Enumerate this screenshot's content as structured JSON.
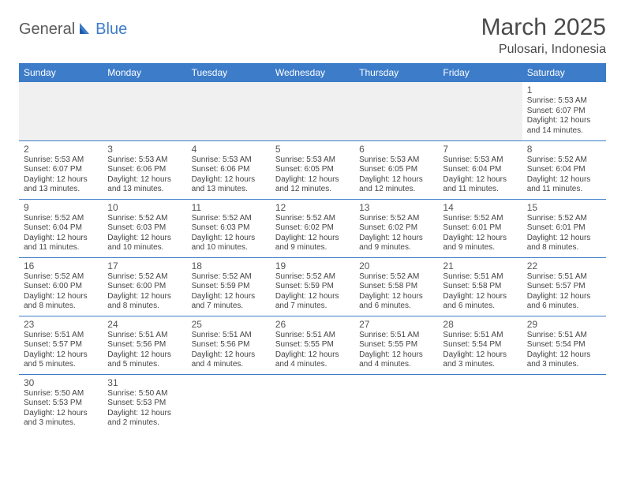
{
  "logo": {
    "general": "General",
    "blue": "Blue"
  },
  "title": "March 2025",
  "location": "Pulosari, Indonesia",
  "header_bg": "#3d7cc9",
  "header_fg": "#ffffff",
  "weekdays": [
    "Sunday",
    "Monday",
    "Tuesday",
    "Wednesday",
    "Thursday",
    "Friday",
    "Saturday"
  ],
  "weeks": [
    [
      null,
      null,
      null,
      null,
      null,
      null,
      {
        "n": "1",
        "sr": "5:53 AM",
        "ss": "6:07 PM",
        "dl": "12 hours and 14 minutes."
      }
    ],
    [
      {
        "n": "2",
        "sr": "5:53 AM",
        "ss": "6:07 PM",
        "dl": "12 hours and 13 minutes."
      },
      {
        "n": "3",
        "sr": "5:53 AM",
        "ss": "6:06 PM",
        "dl": "12 hours and 13 minutes."
      },
      {
        "n": "4",
        "sr": "5:53 AM",
        "ss": "6:06 PM",
        "dl": "12 hours and 13 minutes."
      },
      {
        "n": "5",
        "sr": "5:53 AM",
        "ss": "6:05 PM",
        "dl": "12 hours and 12 minutes."
      },
      {
        "n": "6",
        "sr": "5:53 AM",
        "ss": "6:05 PM",
        "dl": "12 hours and 12 minutes."
      },
      {
        "n": "7",
        "sr": "5:53 AM",
        "ss": "6:04 PM",
        "dl": "12 hours and 11 minutes."
      },
      {
        "n": "8",
        "sr": "5:52 AM",
        "ss": "6:04 PM",
        "dl": "12 hours and 11 minutes."
      }
    ],
    [
      {
        "n": "9",
        "sr": "5:52 AM",
        "ss": "6:04 PM",
        "dl": "12 hours and 11 minutes."
      },
      {
        "n": "10",
        "sr": "5:52 AM",
        "ss": "6:03 PM",
        "dl": "12 hours and 10 minutes."
      },
      {
        "n": "11",
        "sr": "5:52 AM",
        "ss": "6:03 PM",
        "dl": "12 hours and 10 minutes."
      },
      {
        "n": "12",
        "sr": "5:52 AM",
        "ss": "6:02 PM",
        "dl": "12 hours and 9 minutes."
      },
      {
        "n": "13",
        "sr": "5:52 AM",
        "ss": "6:02 PM",
        "dl": "12 hours and 9 minutes."
      },
      {
        "n": "14",
        "sr": "5:52 AM",
        "ss": "6:01 PM",
        "dl": "12 hours and 9 minutes."
      },
      {
        "n": "15",
        "sr": "5:52 AM",
        "ss": "6:01 PM",
        "dl": "12 hours and 8 minutes."
      }
    ],
    [
      {
        "n": "16",
        "sr": "5:52 AM",
        "ss": "6:00 PM",
        "dl": "12 hours and 8 minutes."
      },
      {
        "n": "17",
        "sr": "5:52 AM",
        "ss": "6:00 PM",
        "dl": "12 hours and 8 minutes."
      },
      {
        "n": "18",
        "sr": "5:52 AM",
        "ss": "5:59 PM",
        "dl": "12 hours and 7 minutes."
      },
      {
        "n": "19",
        "sr": "5:52 AM",
        "ss": "5:59 PM",
        "dl": "12 hours and 7 minutes."
      },
      {
        "n": "20",
        "sr": "5:52 AM",
        "ss": "5:58 PM",
        "dl": "12 hours and 6 minutes."
      },
      {
        "n": "21",
        "sr": "5:51 AM",
        "ss": "5:58 PM",
        "dl": "12 hours and 6 minutes."
      },
      {
        "n": "22",
        "sr": "5:51 AM",
        "ss": "5:57 PM",
        "dl": "12 hours and 6 minutes."
      }
    ],
    [
      {
        "n": "23",
        "sr": "5:51 AM",
        "ss": "5:57 PM",
        "dl": "12 hours and 5 minutes."
      },
      {
        "n": "24",
        "sr": "5:51 AM",
        "ss": "5:56 PM",
        "dl": "12 hours and 5 minutes."
      },
      {
        "n": "25",
        "sr": "5:51 AM",
        "ss": "5:56 PM",
        "dl": "12 hours and 4 minutes."
      },
      {
        "n": "26",
        "sr": "5:51 AM",
        "ss": "5:55 PM",
        "dl": "12 hours and 4 minutes."
      },
      {
        "n": "27",
        "sr": "5:51 AM",
        "ss": "5:55 PM",
        "dl": "12 hours and 4 minutes."
      },
      {
        "n": "28",
        "sr": "5:51 AM",
        "ss": "5:54 PM",
        "dl": "12 hours and 3 minutes."
      },
      {
        "n": "29",
        "sr": "5:51 AM",
        "ss": "5:54 PM",
        "dl": "12 hours and 3 minutes."
      }
    ],
    [
      {
        "n": "30",
        "sr": "5:50 AM",
        "ss": "5:53 PM",
        "dl": "12 hours and 3 minutes."
      },
      {
        "n": "31",
        "sr": "5:50 AM",
        "ss": "5:53 PM",
        "dl": "12 hours and 2 minutes."
      },
      null,
      null,
      null,
      null,
      null
    ]
  ],
  "labels": {
    "sunrise": "Sunrise:",
    "sunset": "Sunset:",
    "daylight": "Daylight:"
  }
}
